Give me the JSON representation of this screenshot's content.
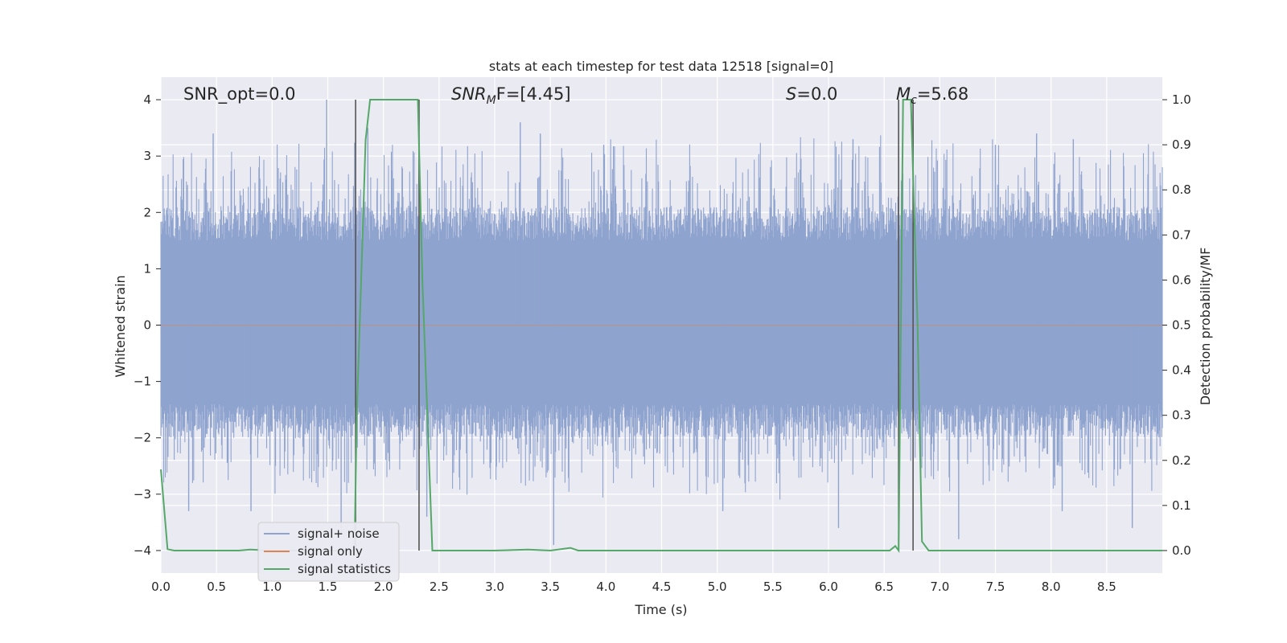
{
  "chart_data": {
    "type": "line",
    "title": "stats at each timestep for test data 12518 [signal=0]",
    "xlabel": "Time (s)",
    "ylabel_left": "Whitened strain",
    "ylabel_right": "Detection probability/MF",
    "xlim": [
      0.0,
      9.0
    ],
    "ylim_left": [
      -4.4,
      4.4
    ],
    "ylim_right": [
      -0.05,
      1.05
    ],
    "x_ticks": [
      "0.0",
      "0.5",
      "1.0",
      "1.5",
      "2.0",
      "2.5",
      "3.0",
      "3.5",
      "4.0",
      "4.5",
      "5.0",
      "5.5",
      "6.0",
      "6.5",
      "7.0",
      "7.5",
      "8.0",
      "8.5"
    ],
    "y_ticks_left": [
      "4",
      "3",
      "2",
      "1",
      "0",
      "−1",
      "−2",
      "−3",
      "−4"
    ],
    "y_ticks_right": [
      "1.0",
      "0.9",
      "0.8",
      "0.7",
      "0.6",
      "0.5",
      "0.4",
      "0.3",
      "0.2",
      "0.1",
      "0.0"
    ],
    "grid": true,
    "legend_position": "lower-left",
    "annotations": {
      "snr_opt": "SNR_opt=0.0",
      "snr_mf_base": "SNR",
      "snr_mf_sub": "M",
      "snr_mf_rest": "F=[4.45]",
      "s_label": "S",
      "s_value": "=0.0",
      "mc_label": "M",
      "mc_sub": "c",
      "mc_value": "=5.68"
    },
    "vertical_lines_x": [
      1.75,
      2.32,
      6.63,
      6.76
    ],
    "series": [
      {
        "name": "signal+ noise",
        "color": "#8fa3cf",
        "axis": "left",
        "description_values": "dense noise band ~[-2, 2.5] with spikes up to ~4 and down to ~-3.9",
        "spikes": [
          [
            0.47,
            3.4
          ],
          [
            1.49,
            4.0
          ],
          [
            1.86,
            3.5
          ],
          [
            2.32,
            3.7
          ],
          [
            3.23,
            3.6
          ],
          [
            3.41,
            3.4
          ],
          [
            3.98,
            3.2
          ],
          [
            6.22,
            3.3
          ],
          [
            7.5,
            3.2
          ],
          [
            7.87,
            3.4
          ],
          [
            8.2,
            3.3
          ],
          [
            1.62,
            -3.7
          ],
          [
            3.53,
            -3.9
          ],
          [
            6.09,
            -3.6
          ],
          [
            8.73,
            -3.6
          ],
          [
            0.25,
            -3.3
          ],
          [
            0.81,
            -3.3
          ],
          [
            2.39,
            -3.4
          ],
          [
            5.05,
            -3.3
          ],
          [
            7.17,
            -3.8
          ],
          [
            8.1,
            -3.3
          ]
        ]
      },
      {
        "name": "signal only",
        "color": "#dd8452",
        "axis": "left",
        "values_y": 0
      },
      {
        "name": "signal statistics",
        "color": "#55a868",
        "axis": "right",
        "x": [
          0.0,
          0.06,
          0.12,
          0.7,
          0.8,
          1.0,
          1.5,
          1.74,
          1.76,
          1.8,
          1.84,
          1.88,
          2.0,
          2.2,
          2.31,
          2.35,
          2.44,
          3.0,
          3.3,
          3.5,
          3.68,
          3.75,
          3.85,
          4.2,
          5.0,
          6.0,
          6.55,
          6.6,
          6.63,
          6.67,
          6.7,
          6.74,
          6.8,
          6.84,
          6.9,
          7.5,
          8.0,
          8.5,
          9.0
        ],
        "y": [
          0.18,
          0.003,
          0.0,
          0.0,
          0.002,
          0.0,
          0.0,
          0.0,
          0.3,
          0.6,
          0.91,
          1.0,
          1.0,
          1.0,
          1.0,
          0.6,
          0.0,
          0.0,
          0.002,
          0.0,
          0.006,
          0.0,
          0.0,
          0.0,
          0.0,
          0.0,
          0.0,
          0.01,
          0.0,
          1.0,
          1.0,
          1.0,
          0.5,
          0.02,
          0.0,
          0.0,
          0.0,
          0.0,
          0.0
        ]
      }
    ]
  }
}
